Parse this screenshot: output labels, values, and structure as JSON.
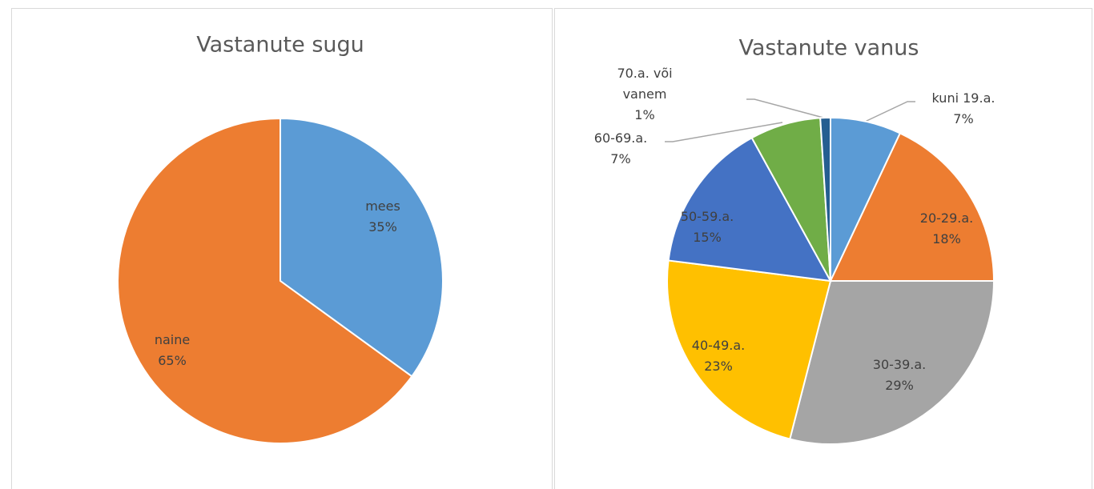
{
  "chart_data": [
    {
      "type": "pie",
      "title": "Vastanute sugu",
      "categories": [
        "mees",
        "naine"
      ],
      "values": [
        35,
        65
      ],
      "value_labels": [
        "35%",
        "65%"
      ],
      "colors": [
        "#5b9bd5",
        "#ed7d31"
      ]
    },
    {
      "type": "pie",
      "title": "Vastanute vanus",
      "categories": [
        "kuni 19.a.",
        "20-29.a.",
        "30-39.a.",
        "40-49.a.",
        "50-59.a.",
        "60-69.a.",
        "70.a. või vanem"
      ],
      "values": [
        7,
        18,
        29,
        23,
        15,
        7,
        1
      ],
      "value_labels": [
        "7%",
        "18%",
        "29%",
        "23%",
        "15%",
        "7%",
        "1%"
      ],
      "colors": [
        "#5b9bd5",
        "#ed7d31",
        "#a5a5a5",
        "#ffc000",
        "#4472c4",
        "#70ad47",
        "#255e91"
      ]
    }
  ]
}
